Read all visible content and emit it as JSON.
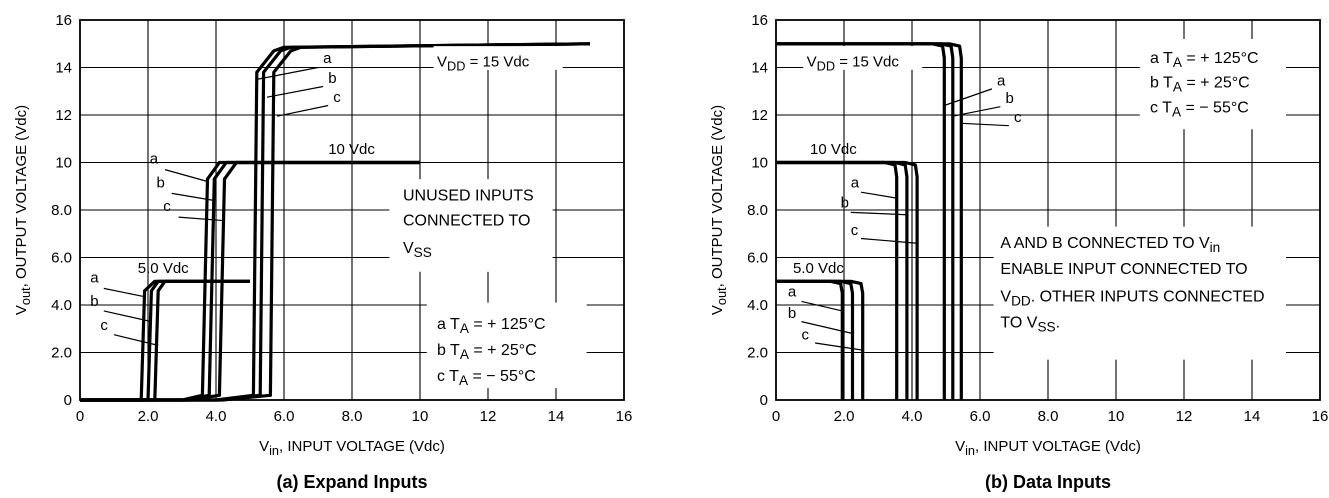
{
  "charts": [
    {
      "id": "a",
      "caption": "(a) Expand Inputs",
      "ylabel_parts": [
        "V",
        "out",
        ", OUTPUT VOLTAGE (Vdc)"
      ],
      "xlabel_parts": [
        "V",
        "in",
        ", INPUT VOLTAGE (Vdc)"
      ],
      "x_ticks": [
        "0",
        "2.0",
        "4.0",
        "6.0",
        "8.0",
        "10",
        "12",
        "14",
        "16"
      ],
      "y_ticks": [
        "0",
        "2.0",
        "4.0",
        "6.0",
        "8.0",
        "10",
        "12",
        "14",
        "16"
      ],
      "supply_labels": {
        "vdd15_parts": [
          "V",
          "DD",
          " = 15 Vdc"
        ],
        "vdd10": "10 Vdc",
        "vdd5": "5.0 Vdc"
      },
      "note_lines": [
        [
          "UNUSED INPUTS"
        ],
        [
          "CONNECTED TO"
        ],
        [
          "V",
          "SS"
        ]
      ],
      "legend": [
        [
          "a  T",
          "A",
          " = + 125°C"
        ],
        [
          "b  T",
          "A",
          " = + 25°C"
        ],
        [
          "c  T",
          "A",
          " = − 55°C"
        ]
      ],
      "curve_letters": [
        "a",
        "b",
        "c"
      ]
    },
    {
      "id": "b",
      "caption": "(b) Data Inputs",
      "ylabel_parts": [
        "V",
        "out",
        ", OUTPUT VOLTAGE (Vdc)"
      ],
      "xlabel_parts": [
        "V",
        "in",
        ", INPUT VOLTAGE (Vdc)"
      ],
      "x_ticks": [
        "0",
        "2.0",
        "4.0",
        "6.0",
        "8.0",
        "10",
        "12",
        "14",
        "16"
      ],
      "y_ticks": [
        "0",
        "2.0",
        "4.0",
        "6.0",
        "8.0",
        "10",
        "12",
        "14",
        "16"
      ],
      "supply_labels": {
        "vdd15_parts": [
          "V",
          "DD",
          " = 15 Vdc"
        ],
        "vdd10": "10 Vdc",
        "vdd5": "5.0 Vdc"
      },
      "note_lines": [
        [
          "A AND B CONNECTED TO V",
          "in"
        ],
        [
          "ENABLE INPUT CONNECTED TO"
        ],
        [
          "V",
          "DD",
          ". OTHER INPUTS CONNECTED"
        ],
        [
          "TO V",
          "SS",
          "."
        ]
      ],
      "legend": [
        [
          "a  T",
          "A",
          " = + 125°C"
        ],
        [
          "b  T",
          "A",
          " = + 25°C"
        ],
        [
          "c  T",
          "A",
          " = − 55°C"
        ]
      ],
      "curve_letters": [
        "a",
        "b",
        "c"
      ]
    }
  ],
  "chart_data": [
    {
      "type": "line",
      "title": "(a) Expand Inputs",
      "xlabel": "Vin, INPUT VOLTAGE (Vdc)",
      "ylabel": "Vout, OUTPUT VOLTAGE (Vdc)",
      "xlim": [
        0,
        16
      ],
      "ylim": [
        0,
        16
      ],
      "grid": true,
      "series": [
        {
          "name": "a",
          "vdd": 5,
          "x": [
            0,
            1.8,
            1.9,
            2.2,
            5.0
          ],
          "y": [
            0,
            0,
            4.6,
            5.0,
            5.0
          ]
        },
        {
          "name": "b",
          "vdd": 5,
          "x": [
            0,
            2.0,
            2.1,
            2.3,
            5.0
          ],
          "y": [
            0,
            0,
            4.6,
            5.0,
            5.0
          ]
        },
        {
          "name": "c",
          "vdd": 5,
          "x": [
            0,
            2.2,
            2.3,
            2.5,
            5.0
          ],
          "y": [
            0,
            0,
            4.6,
            5.0,
            5.0
          ]
        },
        {
          "name": "a",
          "vdd": 10,
          "x": [
            0,
            3.0,
            3.6,
            3.75,
            4.1,
            10.0
          ],
          "y": [
            0,
            0,
            0.2,
            9.3,
            10.0,
            10.0
          ]
        },
        {
          "name": "b",
          "vdd": 10,
          "x": [
            0,
            3.1,
            3.8,
            3.95,
            4.3,
            10.0
          ],
          "y": [
            0,
            0,
            0.2,
            9.3,
            10.0,
            10.0
          ]
        },
        {
          "name": "c",
          "vdd": 10,
          "x": [
            0,
            3.2,
            4.1,
            4.25,
            4.6,
            10.0
          ],
          "y": [
            0,
            0,
            0.2,
            9.3,
            10.0,
            10.0
          ]
        },
        {
          "name": "a",
          "vdd": 15,
          "x": [
            0,
            4.0,
            5.1,
            5.2,
            5.7,
            6.0,
            15.0
          ],
          "y": [
            0,
            0,
            0.2,
            13.8,
            14.7,
            14.85,
            15.0
          ]
        },
        {
          "name": "b",
          "vdd": 15,
          "x": [
            0,
            4.1,
            5.3,
            5.4,
            5.9,
            6.2,
            15.0
          ],
          "y": [
            0,
            0,
            0.2,
            13.8,
            14.7,
            14.85,
            15.0
          ]
        },
        {
          "name": "c",
          "vdd": 15,
          "x": [
            0,
            4.2,
            5.6,
            5.7,
            6.2,
            6.5,
            15.0
          ],
          "y": [
            0,
            0,
            0.2,
            13.8,
            14.7,
            14.85,
            15.0
          ]
        }
      ]
    },
    {
      "type": "line",
      "title": "(b) Data Inputs",
      "xlabel": "Vin, INPUT VOLTAGE (Vdc)",
      "ylabel": "Vout, OUTPUT VOLTAGE (Vdc)",
      "xlim": [
        0,
        16
      ],
      "ylim": [
        0,
        16
      ],
      "grid": true,
      "series": [
        {
          "name": "a",
          "vdd": 5,
          "x": [
            0,
            1.6,
            1.9,
            1.95,
            1.95
          ],
          "y": [
            5.0,
            5.0,
            4.9,
            4.5,
            0
          ]
        },
        {
          "name": "b",
          "vdd": 5,
          "x": [
            0,
            1.9,
            2.2,
            2.25,
            2.25
          ],
          "y": [
            5.0,
            5.0,
            4.9,
            4.5,
            0
          ]
        },
        {
          "name": "c",
          "vdd": 5,
          "x": [
            0,
            2.2,
            2.5,
            2.55,
            2.55
          ],
          "y": [
            5.0,
            5.0,
            4.9,
            4.5,
            0
          ]
        },
        {
          "name": "a",
          "vdd": 10,
          "x": [
            0,
            3.2,
            3.5,
            3.55,
            3.55
          ],
          "y": [
            10.0,
            10.0,
            9.9,
            9.4,
            0
          ]
        },
        {
          "name": "b",
          "vdd": 10,
          "x": [
            0,
            3.5,
            3.8,
            3.85,
            3.85
          ],
          "y": [
            10.0,
            10.0,
            9.9,
            9.4,
            0
          ]
        },
        {
          "name": "c",
          "vdd": 10,
          "x": [
            0,
            3.8,
            4.1,
            4.15,
            4.15
          ],
          "y": [
            10.0,
            10.0,
            9.9,
            9.4,
            0
          ]
        },
        {
          "name": "a",
          "vdd": 15,
          "x": [
            0,
            4.6,
            4.9,
            4.95,
            4.95
          ],
          "y": [
            15.0,
            15.0,
            14.9,
            14.4,
            0
          ]
        },
        {
          "name": "b",
          "vdd": 15,
          "x": [
            0,
            4.85,
            5.15,
            5.2,
            5.2
          ],
          "y": [
            15.0,
            15.0,
            14.9,
            14.4,
            0
          ]
        },
        {
          "name": "c",
          "vdd": 15,
          "x": [
            0,
            5.1,
            5.4,
            5.45,
            5.45
          ],
          "y": [
            15.0,
            15.0,
            14.9,
            14.4,
            0
          ]
        }
      ]
    }
  ]
}
